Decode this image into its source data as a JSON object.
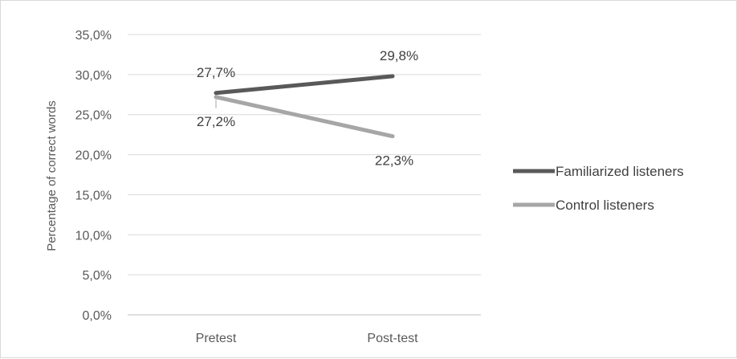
{
  "chart_data": {
    "type": "line",
    "categories": [
      "Pretest",
      "Post-test"
    ],
    "series": [
      {
        "name": "Familiarized listeners",
        "values": [
          27.7,
          29.8
        ],
        "labels": [
          "27,7%",
          "29,8%"
        ],
        "color": "#595959"
      },
      {
        "name": "Control listeners",
        "values": [
          27.2,
          22.3
        ],
        "labels": [
          "27,2%",
          "22,3%"
        ],
        "color": "#a6a6a6"
      }
    ],
    "xlabel": "",
    "ylabel": "Percentage of correct words",
    "ylim": [
      0,
      35
    ],
    "yticks": [
      0,
      5,
      10,
      15,
      20,
      25,
      30,
      35
    ],
    "ytick_labels": [
      "0,0%",
      "5,0%",
      "10,0%",
      "15,0%",
      "20,0%",
      "25,0%",
      "30,0%",
      "35,0%"
    ],
    "grid": true,
    "legend_position": "right"
  }
}
